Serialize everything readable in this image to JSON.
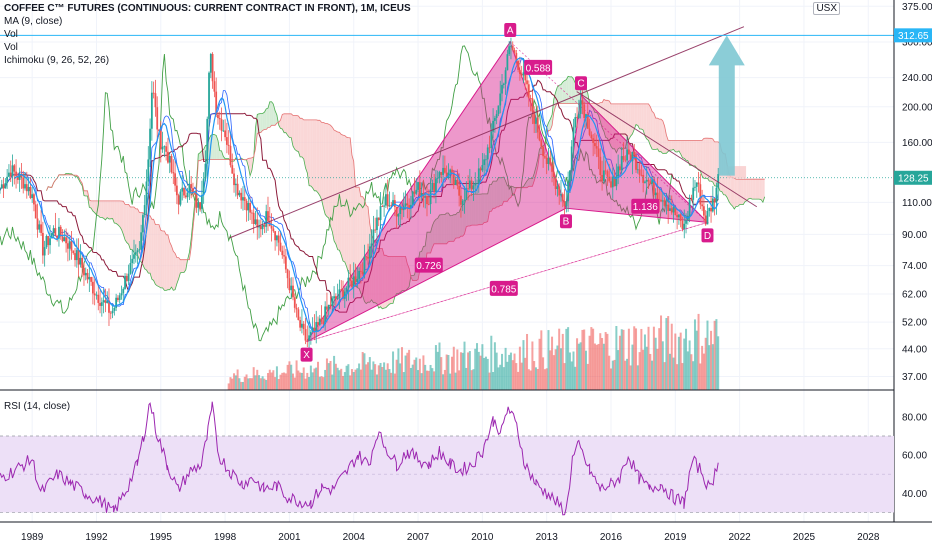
{
  "legend": {
    "title": "COFFEE C™ FUTURES (CONTINUOUS: CURRENT CONTRACT IN FRONT), 1M, ICEUS",
    "lines": [
      "MA (9, close)",
      "Vol",
      "Vol",
      "Ichimoku (9, 26, 52, 26)"
    ]
  },
  "currency": "USX",
  "rsi_label": "RSI (14, close)",
  "colors": {
    "up": "#26a69a",
    "down": "#ef5350",
    "pattern": "#d81b8c",
    "ma": "#2196f3",
    "arrow": "#7ec8d3",
    "rsi": "#9c27b0",
    "rsi_band": "#ede0f7",
    "cloud_bear": "#f8c9c9",
    "cloud_bull": "#c8e6c9",
    "tenkan": "#2962ff",
    "kijun": "#8d1c3b",
    "span_a": "#4caf50",
    "span_b": "#e57373",
    "lagging": "#43a047"
  },
  "chart_data": {
    "type": "candlestick",
    "symbol": "COFFEE C FUTURES",
    "interval": "1M",
    "y_scale": "log",
    "ylim": [
      34,
      390
    ],
    "y_ticks": [
      37.0,
      44.0,
      52.0,
      62.0,
      74.0,
      90.0,
      110.0,
      160.0,
      200.0,
      240.0,
      300.0,
      375.0
    ],
    "y_tick_labels": [
      "37.00",
      "44.00",
      "52.00",
      "62.00",
      "74.00",
      "90.00",
      "110.00",
      "160.00",
      "200.00",
      "240.00",
      "300.00",
      "375.00"
    ],
    "x_ticks": [
      1989,
      1992,
      1995,
      1998,
      2001,
      2004,
      2007,
      2010,
      2013,
      2016,
      2019,
      2022,
      2025,
      2028
    ],
    "x_range": [
      1987.5,
      2029.2
    ],
    "last_price": 128.25,
    "last_price_label": "128.25",
    "horizontal_level": 312.65,
    "horizontal_level_label": "312.65",
    "price_path": [
      [
        1987.5,
        120
      ],
      [
        1988.0,
        135
      ],
      [
        1988.6,
        125
      ],
      [
        1989.0,
        115
      ],
      [
        1989.5,
        82
      ],
      [
        1990.0,
        92
      ],
      [
        1990.5,
        88
      ],
      [
        1991.0,
        80
      ],
      [
        1991.5,
        70
      ],
      [
        1992.0,
        62
      ],
      [
        1992.7,
        55
      ],
      [
        1993.0,
        60
      ],
      [
        1993.5,
        72
      ],
      [
        1994.0,
        80
      ],
      [
        1994.4,
        140
      ],
      [
        1994.6,
        230
      ],
      [
        1994.9,
        165
      ],
      [
        1995.3,
        150
      ],
      [
        1995.8,
        112
      ],
      [
        1996.3,
        122
      ],
      [
        1996.8,
        105
      ],
      [
        1997.1,
        150
      ],
      [
        1997.3,
        280
      ],
      [
        1997.6,
        195
      ],
      [
        1998.0,
        170
      ],
      [
        1998.5,
        122
      ],
      [
        1999.0,
        110
      ],
      [
        1999.5,
        92
      ],
      [
        2000.0,
        102
      ],
      [
        2000.5,
        86
      ],
      [
        2001.0,
        66
      ],
      [
        2001.4,
        52
      ],
      [
        2001.8,
        46
      ],
      [
        2002.3,
        50
      ],
      [
        2002.9,
        58
      ],
      [
        2003.4,
        62
      ],
      [
        2004.0,
        68
      ],
      [
        2004.5,
        75
      ],
      [
        2005.0,
        95
      ],
      [
        2005.5,
        112
      ],
      [
        2006.0,
        105
      ],
      [
        2006.5,
        110
      ],
      [
        2007.0,
        120
      ],
      [
        2007.5,
        113
      ],
      [
        2008.0,
        135
      ],
      [
        2008.5,
        130
      ],
      [
        2009.0,
        113
      ],
      [
        2009.5,
        122
      ],
      [
        2010.0,
        135
      ],
      [
        2010.5,
        175
      ],
      [
        2011.0,
        240
      ],
      [
        2011.3,
        295
      ],
      [
        2011.7,
        260
      ],
      [
        2012.0,
        230
      ],
      [
        2012.5,
        180
      ],
      [
        2013.0,
        142
      ],
      [
        2013.5,
        122
      ],
      [
        2013.9,
        108
      ],
      [
        2014.3,
        185
      ],
      [
        2014.6,
        210
      ],
      [
        2015.0,
        175
      ],
      [
        2015.5,
        135
      ],
      [
        2016.0,
        120
      ],
      [
        2016.5,
        145
      ],
      [
        2017.0,
        148
      ],
      [
        2017.5,
        130
      ],
      [
        2018.0,
        120
      ],
      [
        2018.5,
        112
      ],
      [
        2019.0,
        102
      ],
      [
        2019.4,
        93
      ],
      [
        2019.8,
        118
      ],
      [
        2020.0,
        125
      ],
      [
        2020.4,
        98
      ],
      [
        2020.8,
        112
      ],
      [
        2021.0,
        128
      ]
    ],
    "ma_period": 9,
    "ichimoku": {
      "conversion": 9,
      "base": 26,
      "span": 52,
      "displacement": 26
    },
    "pattern": {
      "name": "harmonic",
      "points": [
        {
          "label": "X",
          "x": 2001.8,
          "y": 46
        },
        {
          "label": "A",
          "x": 2011.3,
          "y": 300
        },
        {
          "label": "B",
          "x": 2013.9,
          "y": 106
        },
        {
          "label": "C",
          "x": 2014.6,
          "y": 215
        },
        {
          "label": "D",
          "x": 2020.5,
          "y": 97
        }
      ],
      "ratios": [
        {
          "label": "0.588",
          "x": 2012.6,
          "y": 255
        },
        {
          "label": "0.726",
          "x": 2007.5,
          "y": 74
        },
        {
          "label": "0.785",
          "x": 2011.0,
          "y": 64
        },
        {
          "label": "1.136",
          "x": 2017.6,
          "y": 107
        }
      ]
    },
    "trendlines": [
      {
        "from": [
          1998.2,
          88
        ],
        "to": [
          2022.2,
          330
        ]
      },
      {
        "from": [
          2014.4,
          220
        ],
        "to": [
          2022.8,
          107
        ]
      },
      {
        "from": [
          2001.8,
          46
        ],
        "to": [
          2020.5,
          97
        ]
      }
    ],
    "arrow": {
      "x": 2021.4,
      "y_from": 130,
      "y_to": 312.65
    },
    "target_box": {
      "x0": 2021.4,
      "x1": 2022.3,
      "y0": 128,
      "y1": 138
    },
    "rsi": {
      "ylim": [
        25,
        93
      ],
      "ticks": [
        40.0,
        60.0,
        80.0
      ],
      "tick_labels": [
        "40.00",
        "60.00",
        "80.00"
      ],
      "band": [
        30,
        70
      ],
      "path": [
        [
          1987.5,
          48
        ],
        [
          1988.2,
          52
        ],
        [
          1989.0,
          58
        ],
        [
          1989.4,
          40
        ],
        [
          1990.2,
          50
        ],
        [
          1990.8,
          45
        ],
        [
          1991.5,
          40
        ],
        [
          1992.3,
          35
        ],
        [
          1992.8,
          30
        ],
        [
          1993.4,
          42
        ],
        [
          1993.9,
          55
        ],
        [
          1994.2,
          70
        ],
        [
          1994.5,
          88
        ],
        [
          1994.8,
          72
        ],
        [
          1995.3,
          55
        ],
        [
          1995.8,
          42
        ],
        [
          1996.4,
          52
        ],
        [
          1996.9,
          55
        ],
        [
          1997.2,
          72
        ],
        [
          1997.4,
          85
        ],
        [
          1997.7,
          60
        ],
        [
          1998.2,
          52
        ],
        [
          1998.8,
          45
        ],
        [
          1999.3,
          48
        ],
        [
          1999.8,
          42
        ],
        [
          2000.4,
          44
        ],
        [
          2000.9,
          38
        ],
        [
          2001.5,
          36
        ],
        [
          2002.0,
          35
        ],
        [
          2002.5,
          43
        ],
        [
          2003.0,
          42
        ],
        [
          2003.6,
          50
        ],
        [
          2004.2,
          60
        ],
        [
          2004.7,
          55
        ],
        [
          2005.1,
          72
        ],
        [
          2005.4,
          66
        ],
        [
          2006.0,
          55
        ],
        [
          2006.5,
          62
        ],
        [
          2007.0,
          58
        ],
        [
          2007.5,
          55
        ],
        [
          2008.0,
          62
        ],
        [
          2008.5,
          55
        ],
        [
          2009.0,
          52
        ],
        [
          2009.5,
          55
        ],
        [
          2010.0,
          62
        ],
        [
          2010.5,
          78
        ],
        [
          2010.9,
          72
        ],
        [
          2011.2,
          85
        ],
        [
          2011.6,
          75
        ],
        [
          2012.0,
          55
        ],
        [
          2012.5,
          45
        ],
        [
          2013.0,
          40
        ],
        [
          2013.5,
          35
        ],
        [
          2013.9,
          30
        ],
        [
          2014.2,
          58
        ],
        [
          2014.5,
          65
        ],
        [
          2015.0,
          52
        ],
        [
          2015.5,
          42
        ],
        [
          2016.0,
          45
        ],
        [
          2016.4,
          48
        ],
        [
          2016.8,
          60
        ],
        [
          2017.3,
          48
        ],
        [
          2017.8,
          42
        ],
        [
          2018.3,
          45
        ],
        [
          2018.9,
          38
        ],
        [
          2019.4,
          35
        ],
        [
          2019.8,
          57
        ],
        [
          2020.2,
          52
        ],
        [
          2020.6,
          42
        ],
        [
          2021.0,
          56
        ]
      ]
    }
  }
}
